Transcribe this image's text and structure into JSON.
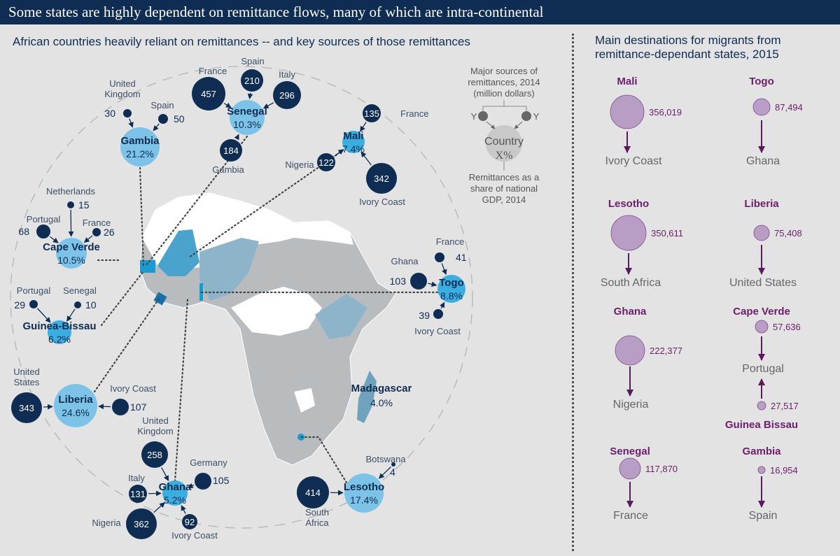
{
  "header": {
    "title": "Some states are highly dependent on remittance flows, many of which are intra-continental"
  },
  "left_panel": {
    "title": "African countries heavily reliant on remittances -- and key sources of those remittances",
    "legend": {
      "title": [
        "Major sources of",
        "remittances, 2014",
        "(million dollars)"
      ],
      "source_placeholder": "Y",
      "country_placeholder": "Country",
      "pct_placeholder": "X%",
      "caption": [
        "Remittances as a",
        "share of national",
        "GDP, 2014"
      ]
    },
    "countries": [
      {
        "name": "Gambia",
        "pct": "21.2%",
        "sources": [
          {
            "name": "United Kingdom",
            "value": 30
          },
          {
            "name": "Spain",
            "value": 50
          }
        ]
      },
      {
        "name": "Senegal",
        "pct": "10.3%",
        "sources": [
          {
            "name": "France",
            "value": 457
          },
          {
            "name": "Spain",
            "value": 210
          },
          {
            "name": "Italy",
            "value": 296
          },
          {
            "name": "Gambia",
            "value": 184
          }
        ]
      },
      {
        "name": "Mali",
        "pct": "7.4%",
        "sources": [
          {
            "name": "France",
            "value": 135
          },
          {
            "name": "Nigeria",
            "value": 122
          },
          {
            "name": "Ivory Coast",
            "value": 342
          }
        ]
      },
      {
        "name": "Cape Verde",
        "pct": "10.5%",
        "sources": [
          {
            "name": "Netherlands",
            "value": 15
          },
          {
            "name": "Portugal",
            "value": 68
          },
          {
            "name": "France",
            "value": 26
          }
        ]
      },
      {
        "name": "Guinea-Bissau",
        "pct": "6.2%",
        "sources": [
          {
            "name": "Portugal",
            "value": 29
          },
          {
            "name": "Senegal",
            "value": 10
          }
        ]
      },
      {
        "name": "Liberia",
        "pct": "24.6%",
        "sources": [
          {
            "name": "United States",
            "value": 343
          },
          {
            "name": "Ivory Coast",
            "value": 107
          }
        ]
      },
      {
        "name": "Ghana",
        "pct": "5.2%",
        "sources": [
          {
            "name": "United Kingdom",
            "value": 258
          },
          {
            "name": "Germany",
            "value": 105
          },
          {
            "name": "Italy",
            "value": 131
          },
          {
            "name": "Nigeria",
            "value": 362
          },
          {
            "name": "Ivory Coast",
            "value": 92
          }
        ]
      },
      {
        "name": "Lesotho",
        "pct": "17.4%",
        "sources": [
          {
            "name": "South Africa",
            "value": 414
          },
          {
            "name": "Botswana",
            "value": 4
          }
        ]
      },
      {
        "name": "Togo",
        "pct": "8.8%",
        "sources": [
          {
            "name": "France",
            "value": 41
          },
          {
            "name": "Ghana",
            "value": 103
          },
          {
            "name": "Ivory Coast",
            "value": 39
          }
        ]
      },
      {
        "name": "Madagascar",
        "pct": "4.0%",
        "sources": []
      }
    ],
    "colors": {
      "country": "#7dc3e8",
      "country_highlight": "#3aaee0",
      "source": "#0f2c52",
      "map_grey": "#b9bcbf",
      "map_blue": "#8db4c8"
    }
  },
  "right_panel": {
    "title": [
      "Main destinations for migrants from",
      "remittance-dependant states, 2015"
    ],
    "flows": [
      {
        "origin": "Mali",
        "migrants": "356,019",
        "destination": "Ivory Coast"
      },
      {
        "origin": "Togo",
        "migrants": "87,494",
        "destination": "Ghana"
      },
      {
        "origin": "Lesotho",
        "migrants": "350,611",
        "destination": "South Africa"
      },
      {
        "origin": "Liberia",
        "migrants": "75,408",
        "destination": "United States"
      },
      {
        "origin": "Ghana",
        "migrants": "222,377",
        "destination": "Nigeria"
      },
      {
        "origin": "Cape Verde",
        "migrants": "57,636",
        "destination": "Portugal"
      },
      {
        "origin": "Guinea Bissau",
        "migrants": "27,517",
        "destination": "Portugal"
      },
      {
        "origin": "Senegal",
        "migrants": "117,870",
        "destination": "France"
      },
      {
        "origin": "Gambia",
        "migrants": "16,954",
        "destination": "Spain"
      }
    ],
    "colors": {
      "bubble": "#b89ec4",
      "bubble_stroke": "#7a4a8a",
      "origin_text": "#6b1e6b",
      "arrow": "#5a1a5e"
    }
  }
}
